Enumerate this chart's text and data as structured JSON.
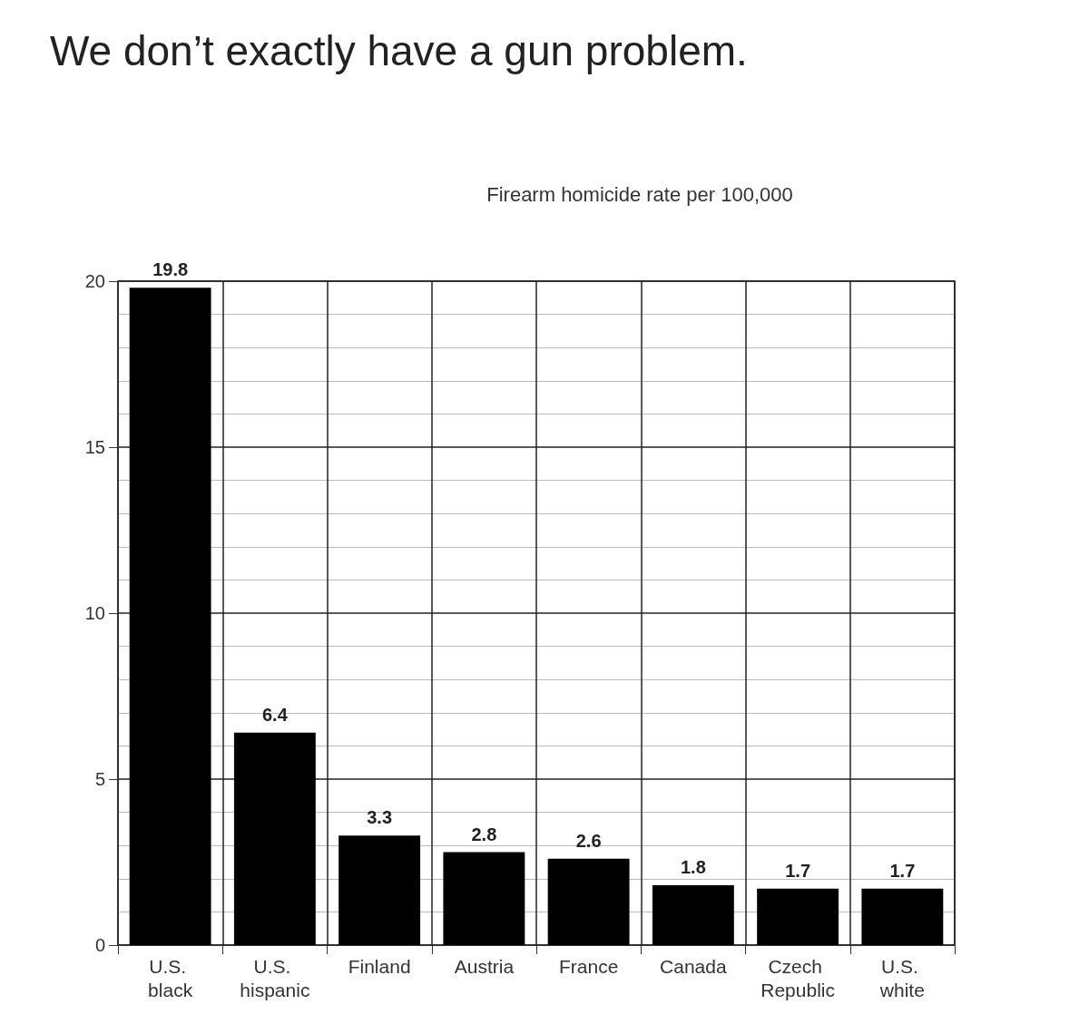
{
  "chart_data": {
    "type": "bar",
    "title": "We don’t exactly have a gun problem.",
    "subtitle": "Firearm homicide rate per 100,000",
    "categories": [
      "U.S. black",
      "U.S. hispanic",
      "Finland",
      "Austria",
      "France",
      "Canada",
      "Czech Republic",
      "U.S. white"
    ],
    "values": [
      19.8,
      6.4,
      3.3,
      2.8,
      2.6,
      1.8,
      1.7,
      1.7
    ],
    "color": "#000000",
    "ylim": [
      0,
      20
    ],
    "yticks": [
      0,
      5,
      10,
      15,
      20
    ],
    "grid": true,
    "data_labels": true
  }
}
